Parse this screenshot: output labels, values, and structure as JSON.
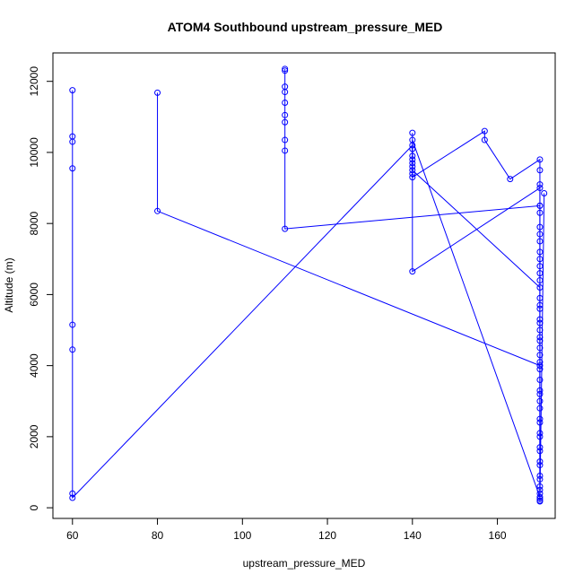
{
  "chart_data": {
    "type": "line",
    "title": "ATOM4 Southbound upstream_pressure_MED",
    "xlabel": "upstream_pressure_MED",
    "ylabel": "Altitude (m)",
    "xlim": [
      55.4,
      173.6
    ],
    "ylim": [
      -300,
      12800
    ],
    "x_ticks": [
      60,
      80,
      100,
      120,
      140,
      160
    ],
    "x_tick_labels": [
      "60",
      "80",
      "100",
      "120",
      "140",
      "160"
    ],
    "y_ticks": [
      0,
      2000,
      4000,
      6000,
      8000,
      10000,
      12000
    ],
    "y_tick_labels": [
      "0",
      "2000",
      "4000",
      "6000",
      "8000",
      "10000",
      "12000"
    ],
    "grid": false,
    "series_color": "#0000ff",
    "series": [
      {
        "marker": "open-circle",
        "points": [
          [
            60,
            11750
          ],
          [
            60,
            10450
          ],
          [
            60,
            10300
          ],
          [
            60,
            9550
          ],
          [
            60,
            5150
          ],
          [
            60,
            4450
          ],
          [
            60,
            400
          ],
          [
            60,
            280
          ],
          [
            140,
            10200
          ],
          [
            140,
            9800
          ],
          [
            140,
            9600
          ],
          [
            140,
            9400
          ],
          [
            140,
            6650
          ],
          [
            170,
            9000
          ],
          [
            170,
            8500
          ],
          [
            170,
            7700
          ],
          [
            170,
            6800
          ],
          [
            170,
            5900
          ],
          [
            170,
            5000
          ],
          [
            170,
            4100
          ],
          [
            170,
            3300
          ],
          [
            170,
            2500
          ],
          [
            170,
            1700
          ],
          [
            170,
            900
          ],
          [
            170,
            400
          ],
          [
            170,
            200
          ]
        ]
      },
      {
        "marker": "open-circle",
        "points": [
          [
            80,
            11680
          ],
          [
            80,
            8350
          ],
          [
            170,
            4000
          ],
          [
            170,
            3200
          ],
          [
            170,
            2400
          ],
          [
            170,
            1600
          ],
          [
            170,
            800
          ],
          [
            170,
            300
          ],
          [
            140,
            10350
          ],
          [
            140,
            9900
          ],
          [
            140,
            9500
          ],
          [
            170,
            6200
          ],
          [
            170,
            5300
          ],
          [
            170,
            4500
          ]
        ]
      },
      {
        "marker": "open-circle",
        "points": [
          [
            110,
            12300
          ],
          [
            110,
            12350
          ],
          [
            110,
            11850
          ],
          [
            110,
            11700
          ],
          [
            110,
            11400
          ],
          [
            110,
            11050
          ],
          [
            110,
            10850
          ],
          [
            110,
            10350
          ],
          [
            110,
            10050
          ],
          [
            110,
            7850
          ],
          [
            170,
            8500
          ],
          [
            170,
            7200
          ],
          [
            170,
            6600
          ],
          [
            170,
            5600
          ],
          [
            170,
            4800
          ],
          [
            170,
            3900
          ],
          [
            170,
            3000
          ],
          [
            170,
            2100
          ],
          [
            170,
            1300
          ],
          [
            170,
            600
          ],
          [
            170,
            250
          ]
        ]
      },
      {
        "marker": "open-circle",
        "points": [
          [
            140,
            10550
          ],
          [
            140,
            10100
          ],
          [
            140,
            9700
          ],
          [
            140,
            9300
          ],
          [
            157,
            10600
          ],
          [
            157,
            10350
          ],
          [
            163,
            9250
          ],
          [
            170,
            9800
          ],
          [
            170,
            9500
          ],
          [
            170,
            9100
          ],
          [
            170,
            8300
          ],
          [
            170,
            7900
          ],
          [
            170,
            7500
          ],
          [
            170,
            7000
          ],
          [
            170,
            6400
          ],
          [
            170,
            5700
          ],
          [
            170,
            5200
          ],
          [
            170,
            4700
          ],
          [
            170,
            4300
          ],
          [
            170,
            3600
          ],
          [
            170,
            2800
          ],
          [
            170,
            2000
          ],
          [
            170,
            1200
          ],
          [
            170,
            500
          ],
          [
            170,
            180
          ],
          [
            171,
            8850
          ]
        ]
      }
    ]
  }
}
